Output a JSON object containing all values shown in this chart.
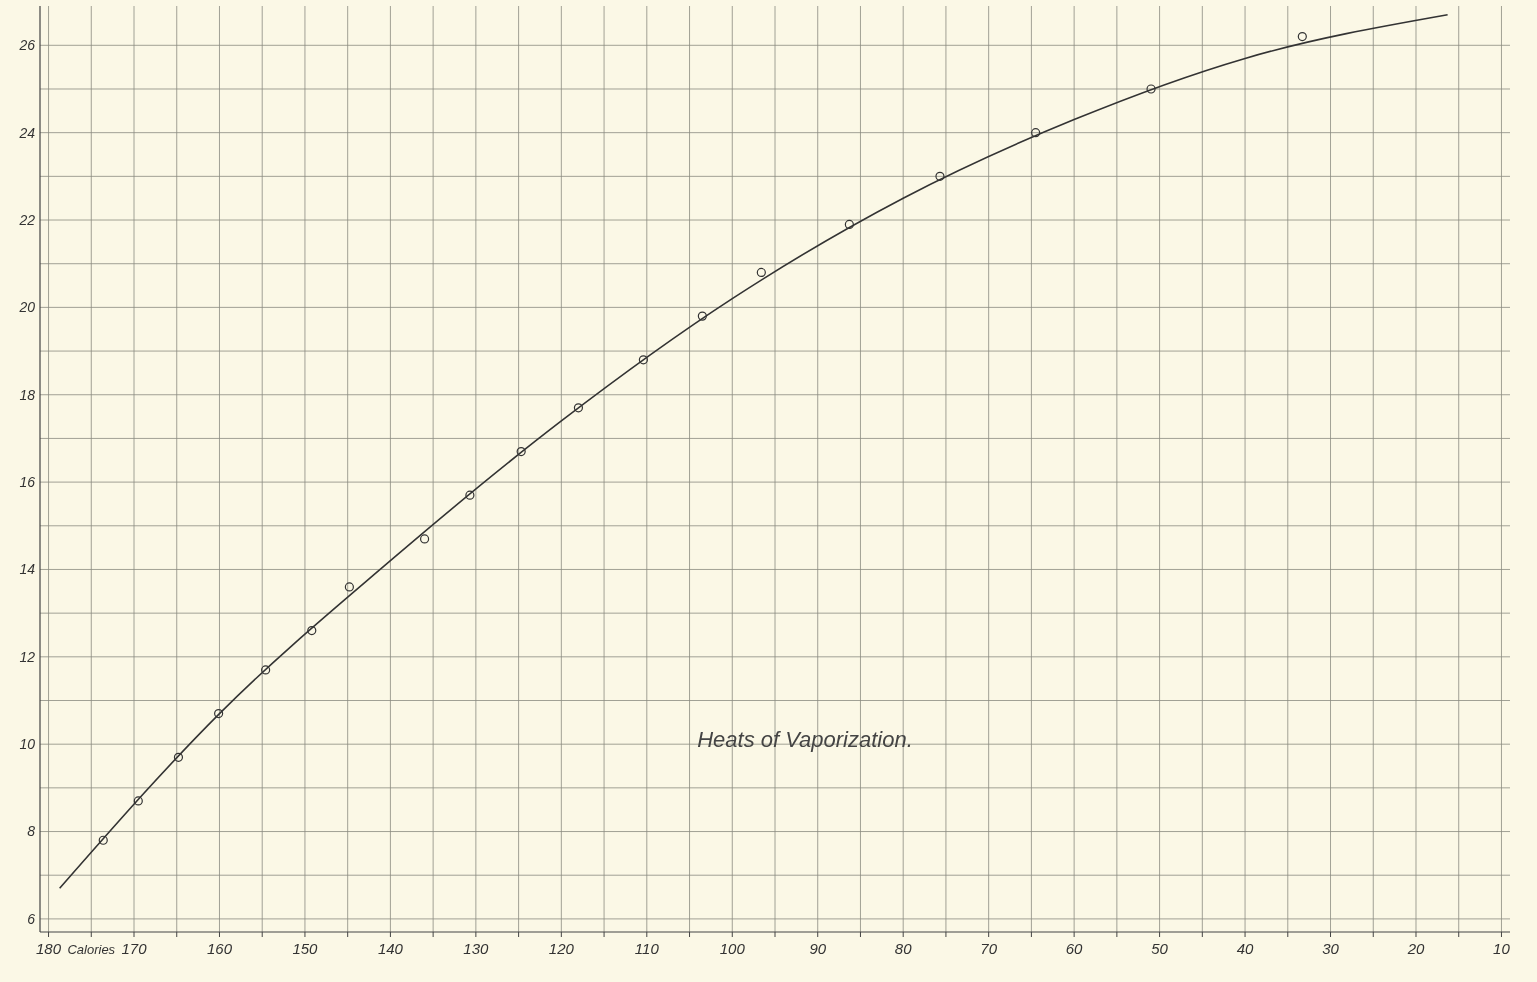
{
  "chart_data": {
    "type": "scatter",
    "title": "Heats of Vaporization.",
    "xlabel": "Calories",
    "xlim": [
      181,
      9
    ],
    "ylim": [
      5.7,
      26.9
    ],
    "xticks": [
      180,
      {
        "value": 175,
        "label": null
      },
      170,
      {
        "value": 165,
        "label": null
      },
      160,
      {
        "value": 155,
        "label": null
      },
      150,
      {
        "value": 145,
        "label": null
      },
      140,
      {
        "value": 135,
        "label": null
      },
      130,
      {
        "value": 125,
        "label": null
      },
      120,
      {
        "value": 115,
        "label": null
      },
      110,
      {
        "value": 105,
        "label": null
      },
      100,
      {
        "value": 95,
        "label": null
      },
      90,
      {
        "value": 85,
        "label": null
      },
      80,
      {
        "value": 75,
        "label": null
      },
      70,
      {
        "value": 65,
        "label": null
      },
      60,
      {
        "value": 55,
        "label": null
      },
      50,
      {
        "value": 45,
        "label": null
      },
      40,
      {
        "value": 35,
        "label": null
      },
      30,
      {
        "value": 25,
        "label": null
      },
      20,
      {
        "value": 15,
        "label": null
      },
      10
    ],
    "yticks": [
      6,
      {
        "value": 7,
        "label": null
      },
      8,
      {
        "value": 9,
        "label": null
      },
      10,
      {
        "value": 11,
        "label": null
      },
      12,
      {
        "value": 13,
        "label": null
      },
      14,
      {
        "value": 15,
        "label": null
      },
      16,
      {
        "value": 17,
        "label": null
      },
      18,
      {
        "value": 19,
        "label": null
      },
      20,
      {
        "value": 21,
        "label": null
      },
      22,
      {
        "value": 23,
        "label": null
      },
      24,
      {
        "value": 25,
        "label": null
      },
      26
    ],
    "grid": true,
    "series": [
      {
        "type": "line",
        "marker": "none",
        "line_style": "solid",
        "color": "#333333",
        "x": [
          178.7,
          160,
          140,
          120,
          100,
          80,
          60,
          40,
          16.3
        ],
        "values": [
          6.7,
          10.7,
          14.2,
          17.4,
          20.2,
          22.5,
          24.3,
          25.7,
          26.7
        ]
      },
      {
        "marker": "circle",
        "color": "#333333",
        "x": [
          173.6,
          169.5,
          164.8,
          160.1,
          154.6,
          149.2,
          144.8,
          136.0,
          130.7,
          124.7,
          118.0,
          110.4,
          103.5,
          96.6,
          86.3,
          75.7,
          64.5,
          51.0,
          33.3
        ],
        "values": [
          7.8,
          8.7,
          9.7,
          10.7,
          11.7,
          12.6,
          13.6,
          14.7,
          15.7,
          16.7,
          17.7,
          18.8,
          19.8,
          20.8,
          21.9,
          23.0,
          24.0,
          25.0,
          26.2
        ]
      }
    ]
  }
}
